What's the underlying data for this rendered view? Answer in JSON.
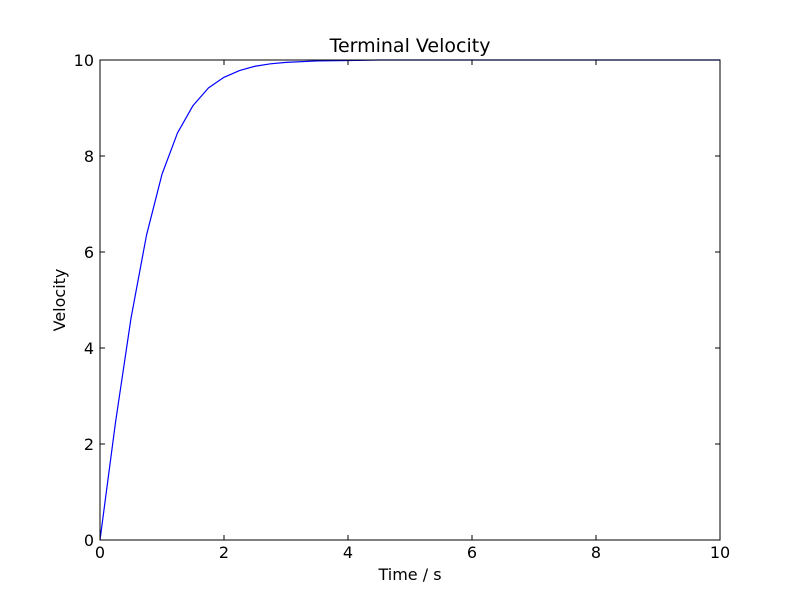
{
  "chart_data": {
    "type": "line",
    "title": "Terminal Velocity",
    "xlabel": "Time / s",
    "ylabel": "Velocity",
    "xlim": [
      0,
      10
    ],
    "ylim": [
      0,
      10
    ],
    "xticks": [
      0,
      2,
      4,
      6,
      8,
      10
    ],
    "xtick_labels": [
      "0",
      "2",
      "4",
      "6",
      "8",
      "10"
    ],
    "yticks": [
      0,
      2,
      4,
      6,
      8,
      10
    ],
    "ytick_labels": [
      "0",
      "2",
      "4",
      "6",
      "8",
      "10"
    ],
    "grid": false,
    "legend": "none",
    "series": [
      {
        "color": "#0000ff",
        "x": [
          0,
          0.25,
          0.5,
          0.75,
          1.0,
          1.25,
          1.5,
          1.75,
          2.0,
          2.25,
          2.5,
          2.75,
          3.0,
          3.5,
          4.0,
          4.5,
          5.0,
          5.5,
          6.0,
          6.5,
          7.0,
          7.5,
          8.0,
          8.5,
          9.0,
          9.5,
          10.0
        ],
        "y": [
          0,
          2.45,
          4.62,
          6.35,
          7.62,
          8.48,
          9.05,
          9.42,
          9.64,
          9.78,
          9.87,
          9.92,
          9.95,
          9.98,
          9.99,
          10.0,
          10.0,
          10.0,
          10.0,
          10.0,
          10.0,
          10.0,
          10.0,
          10.0,
          10.0,
          10.0,
          10.0
        ]
      }
    ]
  }
}
